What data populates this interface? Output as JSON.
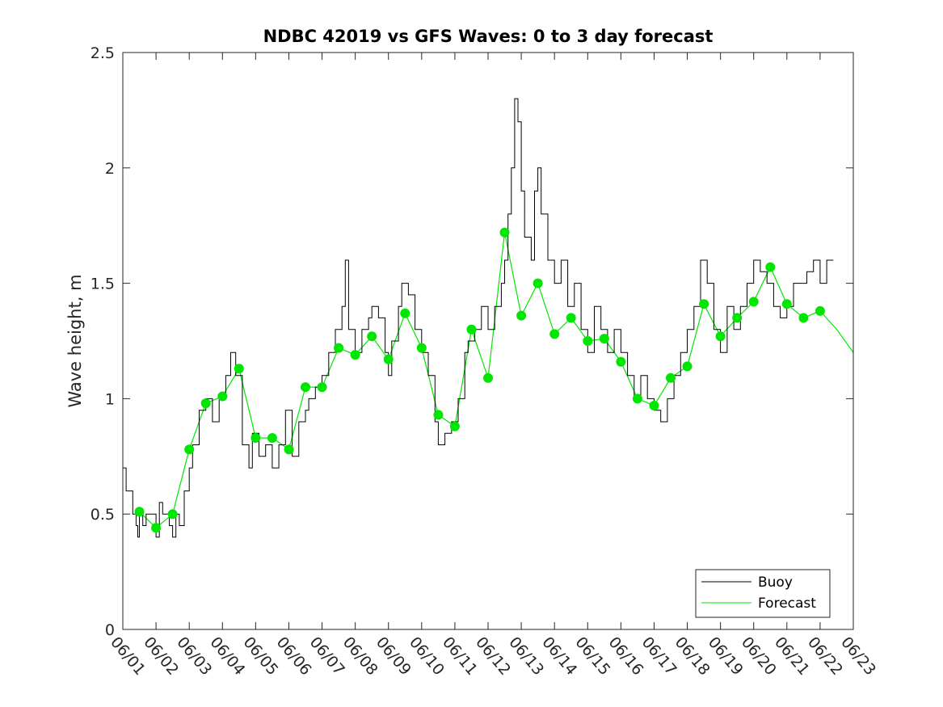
{
  "chart_data": {
    "type": "line",
    "title": "NDBC 42019 vs GFS Waves: 0 to 3 day forecast",
    "xlabel": "",
    "ylabel": "Wave height, m",
    "ylim": [
      0,
      2.5
    ],
    "yticks": [
      "0",
      "0.5",
      "1",
      "1.5",
      "2",
      "2.5"
    ],
    "x_tick_labels": [
      "06/01",
      "06/02",
      "06/03",
      "06/04",
      "06/05",
      "06/06",
      "06/07",
      "06/08",
      "06/09",
      "06/10",
      "06/11",
      "06/12",
      "06/13",
      "06/14",
      "06/15",
      "06/16",
      "06/17",
      "06/18",
      "06/19",
      "06/20",
      "06/21",
      "06/22",
      "06/23"
    ],
    "x_units": "days since 06/01",
    "xlim": [
      0,
      22
    ],
    "grid": false,
    "legend_position": "bottom-right",
    "legend": [
      {
        "name": "Buoy",
        "color": "#000000"
      },
      {
        "name": "Forecast",
        "color": "#00e600"
      }
    ],
    "series": [
      {
        "name": "Buoy",
        "color": "#000000",
        "points": [
          [
            0,
            0.7
          ],
          [
            0.1,
            0.6
          ],
          [
            0.3,
            0.5
          ],
          [
            0.4,
            0.45
          ],
          [
            0.45,
            0.4
          ],
          [
            0.5,
            0.5
          ],
          [
            0.6,
            0.45
          ],
          [
            0.7,
            0.5
          ],
          [
            0.9,
            0.5
          ],
          [
            1.0,
            0.4
          ],
          [
            1.1,
            0.55
          ],
          [
            1.2,
            0.5
          ],
          [
            1.4,
            0.45
          ],
          [
            1.5,
            0.4
          ],
          [
            1.6,
            0.5
          ],
          [
            1.7,
            0.45
          ],
          [
            1.85,
            0.6
          ],
          [
            2.0,
            0.7
          ],
          [
            2.1,
            0.8
          ],
          [
            2.3,
            0.95
          ],
          [
            2.5,
            1.0
          ],
          [
            2.7,
            0.9
          ],
          [
            2.9,
            1.0
          ],
          [
            3.1,
            1.1
          ],
          [
            3.25,
            1.2
          ],
          [
            3.4,
            1.1
          ],
          [
            3.6,
            0.8
          ],
          [
            3.8,
            0.7
          ],
          [
            3.9,
            0.85
          ],
          [
            4.1,
            0.75
          ],
          [
            4.3,
            0.8
          ],
          [
            4.5,
            0.7
          ],
          [
            4.7,
            0.8
          ],
          [
            4.9,
            0.95
          ],
          [
            5.1,
            0.75
          ],
          [
            5.3,
            0.9
          ],
          [
            5.5,
            0.95
          ],
          [
            5.6,
            1.0
          ],
          [
            5.8,
            1.05
          ],
          [
            6.0,
            1.1
          ],
          [
            6.2,
            1.2
          ],
          [
            6.4,
            1.3
          ],
          [
            6.6,
            1.4
          ],
          [
            6.7,
            1.6
          ],
          [
            6.8,
            1.3
          ],
          [
            7.0,
            1.2
          ],
          [
            7.2,
            1.3
          ],
          [
            7.4,
            1.35
          ],
          [
            7.5,
            1.4
          ],
          [
            7.7,
            1.35
          ],
          [
            7.9,
            1.2
          ],
          [
            8.0,
            1.1
          ],
          [
            8.1,
            1.25
          ],
          [
            8.3,
            1.4
          ],
          [
            8.4,
            1.5
          ],
          [
            8.6,
            1.45
          ],
          [
            8.8,
            1.3
          ],
          [
            9.0,
            1.2
          ],
          [
            9.2,
            1.1
          ],
          [
            9.4,
            0.9
          ],
          [
            9.5,
            0.8
          ],
          [
            9.7,
            0.85
          ],
          [
            9.9,
            0.9
          ],
          [
            10.1,
            1.0
          ],
          [
            10.3,
            1.2
          ],
          [
            10.4,
            1.25
          ],
          [
            10.6,
            1.3
          ],
          [
            10.8,
            1.4
          ],
          [
            11.0,
            1.3
          ],
          [
            11.2,
            1.4
          ],
          [
            11.4,
            1.5
          ],
          [
            11.5,
            1.6
          ],
          [
            11.6,
            1.8
          ],
          [
            11.7,
            2.0
          ],
          [
            11.8,
            2.3
          ],
          [
            11.9,
            2.2
          ],
          [
            12.0,
            1.9
          ],
          [
            12.1,
            1.7
          ],
          [
            12.3,
            1.6
          ],
          [
            12.4,
            1.9
          ],
          [
            12.5,
            2.0
          ],
          [
            12.6,
            1.8
          ],
          [
            12.8,
            1.6
          ],
          [
            13.0,
            1.5
          ],
          [
            13.2,
            1.6
          ],
          [
            13.4,
            1.4
          ],
          [
            13.6,
            1.5
          ],
          [
            13.8,
            1.3
          ],
          [
            14.0,
            1.2
          ],
          [
            14.2,
            1.4
          ],
          [
            14.4,
            1.3
          ],
          [
            14.6,
            1.2
          ],
          [
            14.8,
            1.3
          ],
          [
            15.0,
            1.2
          ],
          [
            15.2,
            1.1
          ],
          [
            15.4,
            1.0
          ],
          [
            15.6,
            1.1
          ],
          [
            15.8,
            1.0
          ],
          [
            16.0,
            0.95
          ],
          [
            16.2,
            0.9
          ],
          [
            16.4,
            1.0
          ],
          [
            16.6,
            1.1
          ],
          [
            16.8,
            1.2
          ],
          [
            17.0,
            1.3
          ],
          [
            17.2,
            1.4
          ],
          [
            17.4,
            1.6
          ],
          [
            17.6,
            1.5
          ],
          [
            17.8,
            1.3
          ],
          [
            18.0,
            1.2
          ],
          [
            18.2,
            1.4
          ],
          [
            18.4,
            1.3
          ],
          [
            18.6,
            1.4
          ],
          [
            18.8,
            1.5
          ],
          [
            19.0,
            1.6
          ],
          [
            19.2,
            1.55
          ],
          [
            19.4,
            1.5
          ],
          [
            19.6,
            1.4
          ],
          [
            19.8,
            1.35
          ],
          [
            20.0,
            1.4
          ],
          [
            20.2,
            1.5
          ],
          [
            20.4,
            1.5
          ],
          [
            20.6,
            1.55
          ],
          [
            20.8,
            1.6
          ],
          [
            21.0,
            1.5
          ],
          [
            21.2,
            1.6
          ],
          [
            21.4,
            1.6
          ]
        ]
      },
      {
        "name": "Forecast",
        "color": "#00e600",
        "points": [
          [
            0.5,
            0.51
          ],
          [
            1.0,
            0.44
          ],
          [
            1.5,
            0.5
          ],
          [
            2.0,
            0.78
          ],
          [
            2.5,
            0.98
          ],
          [
            3.0,
            1.01
          ],
          [
            3.5,
            1.13
          ],
          [
            4.0,
            0.83
          ],
          [
            4.5,
            0.83
          ],
          [
            5.0,
            0.78
          ],
          [
            5.5,
            1.05
          ],
          [
            6.0,
            1.05
          ],
          [
            6.5,
            1.22
          ],
          [
            7.0,
            1.19
          ],
          [
            7.5,
            1.27
          ],
          [
            8.0,
            1.17
          ],
          [
            8.5,
            1.37
          ],
          [
            9.0,
            1.22
          ],
          [
            9.5,
            0.93
          ],
          [
            10.0,
            0.88
          ],
          [
            10.5,
            1.3
          ],
          [
            11.0,
            1.09
          ],
          [
            11.5,
            1.72
          ],
          [
            12.0,
            1.36
          ],
          [
            12.5,
            1.5
          ],
          [
            13.0,
            1.28
          ],
          [
            13.5,
            1.35
          ],
          [
            14.0,
            1.25
          ],
          [
            14.5,
            1.26
          ],
          [
            15.0,
            1.16
          ],
          [
            15.5,
            1.0
          ],
          [
            16.0,
            0.97
          ],
          [
            16.5,
            1.09
          ],
          [
            17.0,
            1.14
          ],
          [
            17.5,
            1.41
          ],
          [
            18.0,
            1.27
          ],
          [
            18.5,
            1.35
          ],
          [
            19.0,
            1.42
          ],
          [
            19.5,
            1.57
          ],
          [
            20.0,
            1.41
          ],
          [
            20.5,
            1.35
          ],
          [
            21.0,
            1.38
          ],
          [
            21.5,
            1.3
          ],
          [
            22.0,
            1.2
          ]
        ]
      }
    ],
    "forecast_analysis_markers": {
      "x": [
        0.5,
        1.0,
        1.5,
        2.0,
        2.5,
        3.0,
        3.5,
        4.0,
        4.5,
        5.0,
        5.5,
        6.0,
        6.5,
        7.0,
        7.5,
        8.0,
        8.5,
        9.0,
        9.5,
        10.0,
        10.5,
        11.0,
        11.5,
        12.0,
        12.5,
        13.0,
        13.5,
        14.0,
        14.5,
        15.0,
        15.5,
        16.0,
        16.5,
        17.0,
        17.5,
        18.0,
        18.5,
        19.0,
        19.5,
        20.0,
        20.5,
        21.0
      ],
      "y": [
        0.51,
        0.44,
        0.5,
        0.78,
        0.98,
        1.01,
        1.13,
        0.83,
        0.83,
        0.78,
        1.05,
        1.05,
        1.22,
        1.19,
        1.27,
        1.17,
        1.37,
        1.22,
        0.93,
        0.88,
        1.3,
        1.09,
        1.72,
        1.36,
        1.5,
        1.28,
        1.35,
        1.25,
        1.26,
        1.16,
        1.0,
        0.97,
        1.09,
        1.14,
        1.41,
        1.27,
        1.35,
        1.42,
        1.57,
        1.41,
        1.35,
        1.38
      ],
      "color": "#00e600"
    }
  }
}
